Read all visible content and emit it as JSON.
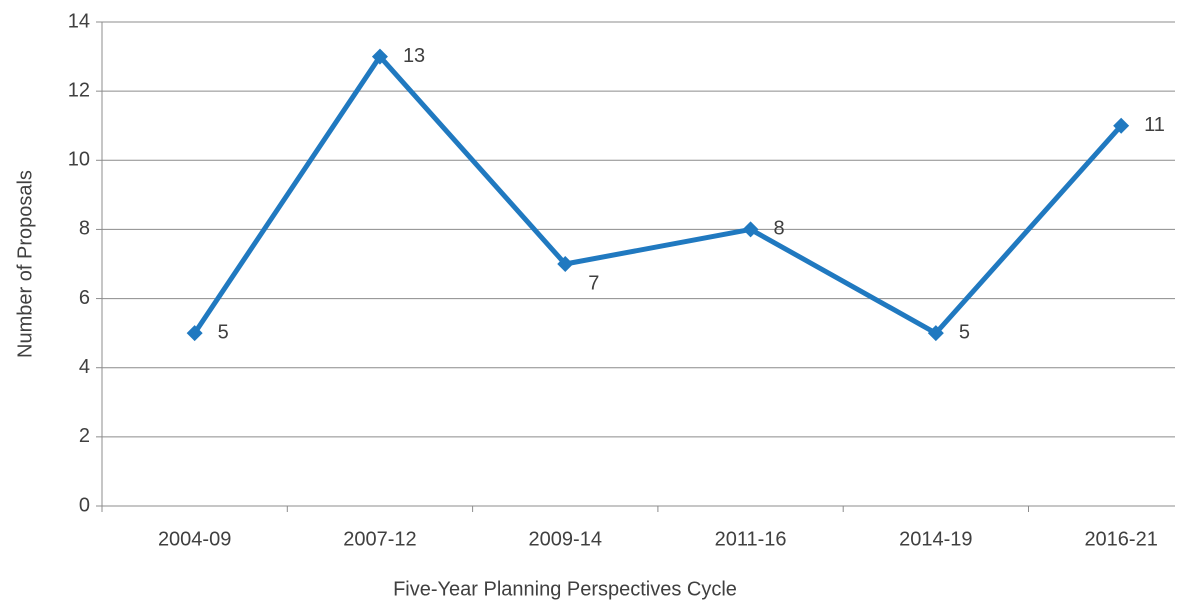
{
  "chart_data": {
    "type": "line",
    "x_label": "Five-Year Planning Perspectives Cycle",
    "y_label": "Number of Proposals",
    "categories": [
      "2004-09",
      "2007-12",
      "2009-14",
      "2011-16",
      "2014-19",
      "2016-21"
    ],
    "series": [
      {
        "name": "Number of Proposals",
        "color": "#2079c0",
        "values": [
          5,
          13,
          7,
          8,
          5,
          11
        ]
      }
    ],
    "ylim": [
      0,
      14
    ],
    "yticks": [
      0,
      2,
      4,
      6,
      8,
      10,
      12,
      14
    ],
    "grid": true,
    "legend": false
  }
}
